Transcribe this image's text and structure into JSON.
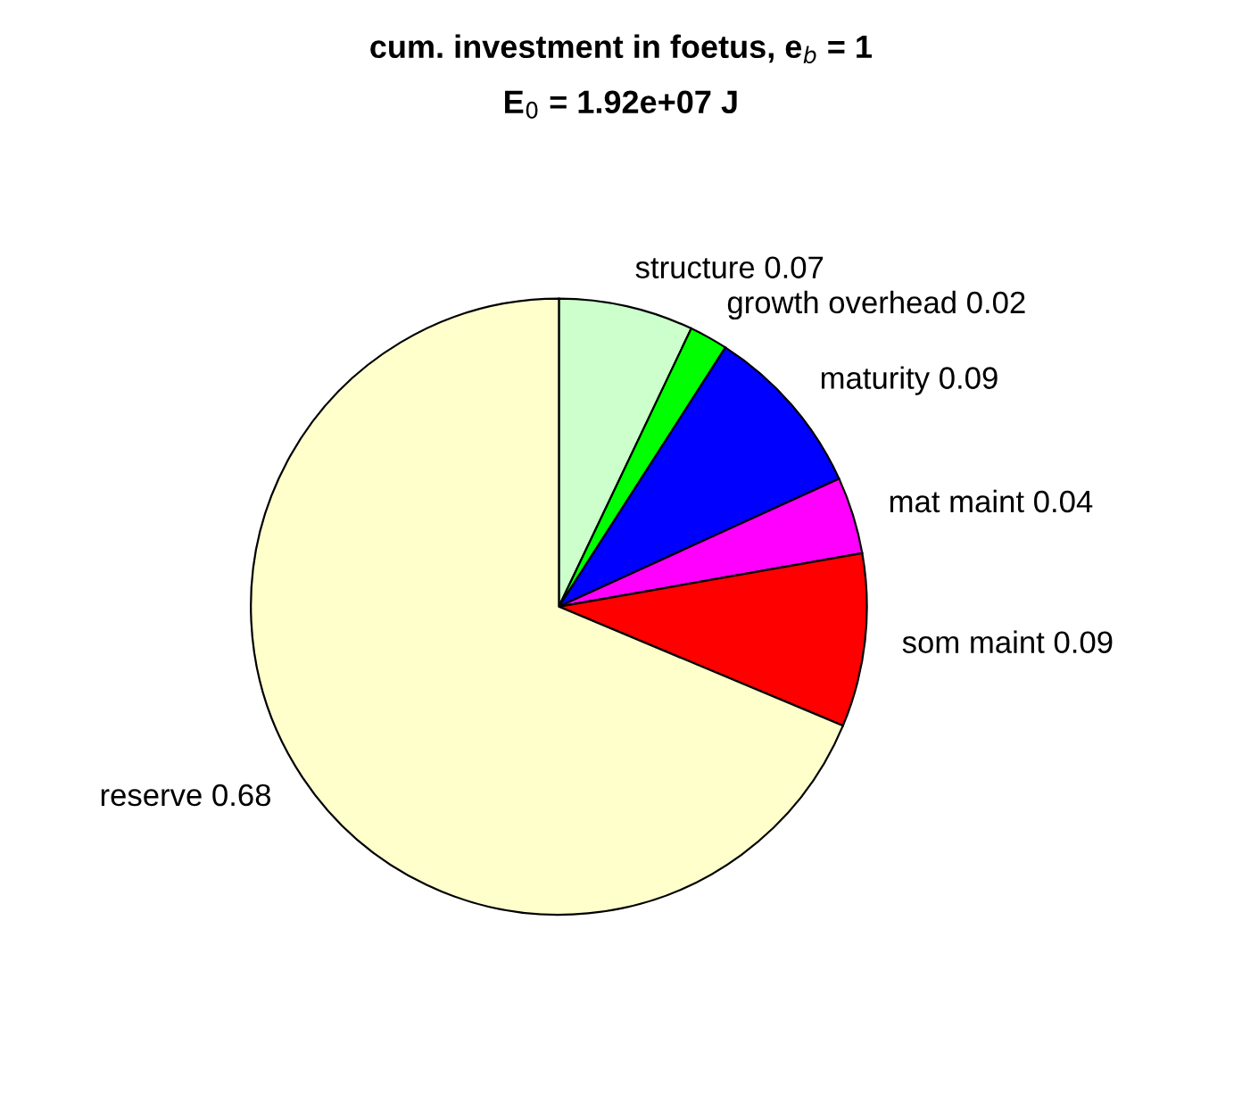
{
  "chart_data": {
    "type": "pie",
    "title": "cum. investment in foetus, e$_{b}$ = 1",
    "subtitle": "E$_{0}$ = 1.92e+07 J",
    "categories": [
      "structure",
      "growth overhead",
      "maturity",
      "mat maint",
      "som maint",
      "reserve"
    ],
    "values": [
      0.07,
      0.02,
      0.09,
      0.04,
      0.09,
      0.68
    ],
    "value_labels": [
      "0.07",
      "0.02",
      "0.09",
      "0.04",
      "0.09",
      "0.68"
    ],
    "colors": [
      "#ccffcc",
      "#00ff00",
      "#0000ff",
      "#ff00ff",
      "#ff0000",
      "#ffffcc"
    ]
  }
}
